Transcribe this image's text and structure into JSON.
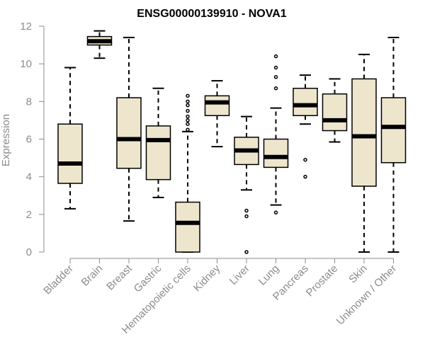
{
  "chart_data": {
    "type": "boxplot",
    "title": "ENSG00000139910 - NOVA1",
    "xlabel": "",
    "ylabel": "Expression",
    "ylim": [
      0,
      12
    ],
    "yticks": [
      0,
      2,
      4,
      6,
      8,
      10,
      12
    ],
    "colors": {
      "box_fill": "#ede6cd",
      "stroke": "#000000",
      "axis": "#8c8c8c"
    },
    "categories": [
      "Bladder",
      "Brain",
      "Breast",
      "Gastric",
      "Hematopoietic cells",
      "Kidney",
      "Liver",
      "Lung",
      "Pancreas",
      "Prostate",
      "Skin",
      "Unknown / Other"
    ],
    "boxes": [
      {
        "name": "Bladder",
        "min": 2.3,
        "q1": 3.65,
        "median": 4.7,
        "q3": 6.8,
        "max": 9.8,
        "outliers": []
      },
      {
        "name": "Brain",
        "min": 10.3,
        "q1": 11.0,
        "median": 11.2,
        "q3": 11.45,
        "max": 11.75,
        "outliers": []
      },
      {
        "name": "Breast",
        "min": 1.65,
        "q1": 4.45,
        "median": 6.0,
        "q3": 8.2,
        "max": 11.4,
        "outliers": []
      },
      {
        "name": "Gastric",
        "min": 2.9,
        "q1": 3.85,
        "median": 5.95,
        "q3": 6.7,
        "max": 8.7,
        "outliers": []
      },
      {
        "name": "Hematopoietic cells",
        "min": 0.0,
        "q1": 0.0,
        "median": 1.55,
        "q3": 2.65,
        "max": 6.4,
        "outliers": [
          6.5,
          6.8,
          7.0,
          7.2,
          7.5,
          7.8,
          8.0,
          8.3
        ]
      },
      {
        "name": "Kidney",
        "min": 5.6,
        "q1": 7.25,
        "median": 7.95,
        "q3": 8.3,
        "max": 9.1,
        "outliers": []
      },
      {
        "name": "Liver",
        "min": 3.3,
        "q1": 4.65,
        "median": 5.4,
        "q3": 6.1,
        "max": 7.2,
        "outliers": [
          2.2,
          1.9,
          0.0
        ]
      },
      {
        "name": "Lung",
        "min": 2.5,
        "q1": 4.5,
        "median": 5.05,
        "q3": 6.0,
        "max": 7.65,
        "outliers": [
          10.4,
          9.8,
          9.3,
          8.7,
          2.1
        ]
      },
      {
        "name": "Pancreas",
        "min": 6.8,
        "q1": 7.25,
        "median": 7.8,
        "q3": 8.7,
        "max": 9.4,
        "outliers": [
          4.9,
          4.0
        ]
      },
      {
        "name": "Prostate",
        "min": 5.85,
        "q1": 6.45,
        "median": 7.0,
        "q3": 8.4,
        "max": 9.2,
        "outliers": []
      },
      {
        "name": "Skin",
        "min": 0.0,
        "q1": 3.5,
        "median": 6.15,
        "q3": 9.2,
        "max": 10.5,
        "outliers": []
      },
      {
        "name": "Unknown / Other",
        "min": 0.0,
        "q1": 4.75,
        "median": 6.65,
        "q3": 8.2,
        "max": 11.4,
        "outliers": []
      }
    ]
  }
}
